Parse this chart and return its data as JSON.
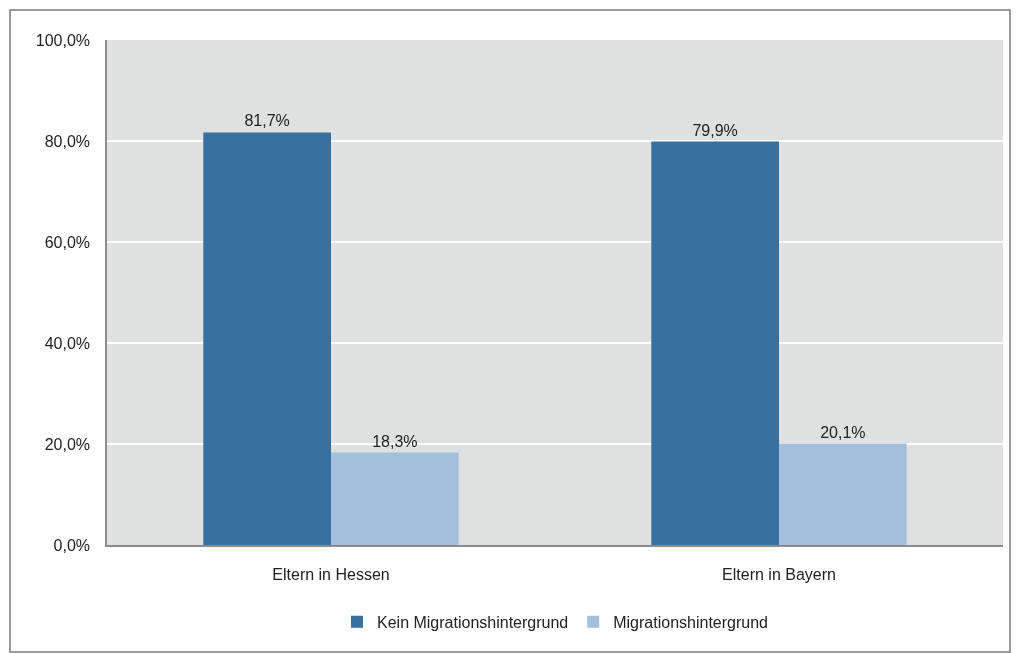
{
  "chart_data": {
    "type": "bar",
    "categories": [
      "Eltern in Hessen",
      "Eltern in Bayern"
    ],
    "series": [
      {
        "name": "Kein Migrationshintergrund",
        "color": "#376f9f",
        "values": [
          81.7,
          79.9
        ],
        "value_labels": [
          "81,7%",
          "79,9%"
        ]
      },
      {
        "name": "Migrationshintergrund",
        "color": "#a3bfdc",
        "values": [
          18.3,
          20.1
        ],
        "value_labels": [
          "18,3%",
          "20,1%"
        ]
      }
    ],
    "ylim": [
      0,
      100
    ],
    "yticks": [
      {
        "value": 0,
        "label": "0,0%"
      },
      {
        "value": 20,
        "label": "20,0%"
      },
      {
        "value": 40,
        "label": "40,0%"
      },
      {
        "value": 60,
        "label": "60,0%"
      },
      {
        "value": 80,
        "label": "80,0%"
      },
      {
        "value": 100,
        "label": "100,0%"
      }
    ],
    "grid": "y",
    "legend": "bottom"
  }
}
